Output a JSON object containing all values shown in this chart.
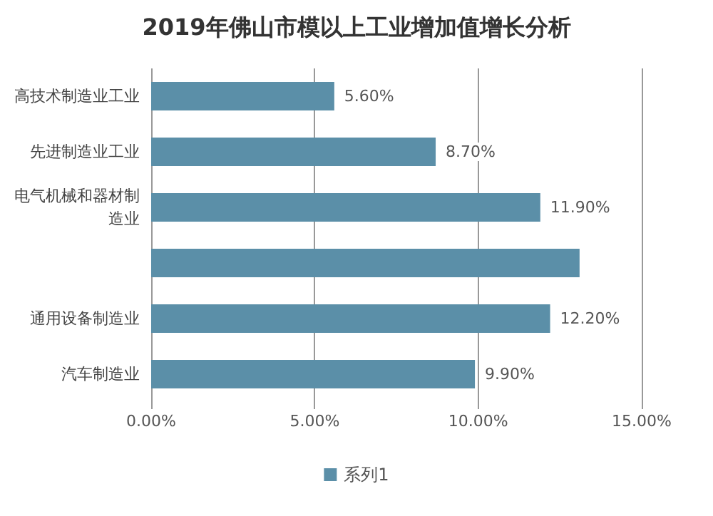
{
  "chart_data": {
    "type": "bar",
    "orientation": "horizontal",
    "title": "2019年佛山市模以上工业增加值增长分析",
    "categories": [
      "高技术制造业工业",
      "先进制造业工业",
      "电气机械和器材制造业",
      null,
      "通用设备制造业",
      "汽车制造业"
    ],
    "series": [
      {
        "name": "系列1",
        "color": "#5b8fa8",
        "values": [
          5.6,
          8.7,
          11.9,
          13.1,
          12.2,
          9.9
        ],
        "value_labels": [
          "5.60%",
          "8.70%",
          "11.90%",
          null,
          "12.20%",
          "9.90%"
        ]
      }
    ],
    "xlim": [
      0,
      15
    ],
    "xticks": [
      {
        "value": 0,
        "label": "0.00%"
      },
      {
        "value": 5,
        "label": "5.00%"
      },
      {
        "value": 10,
        "label": "10.00%"
      },
      {
        "value": 15,
        "label": "15.00%"
      }
    ],
    "grid": "x",
    "legend": "bottom"
  }
}
